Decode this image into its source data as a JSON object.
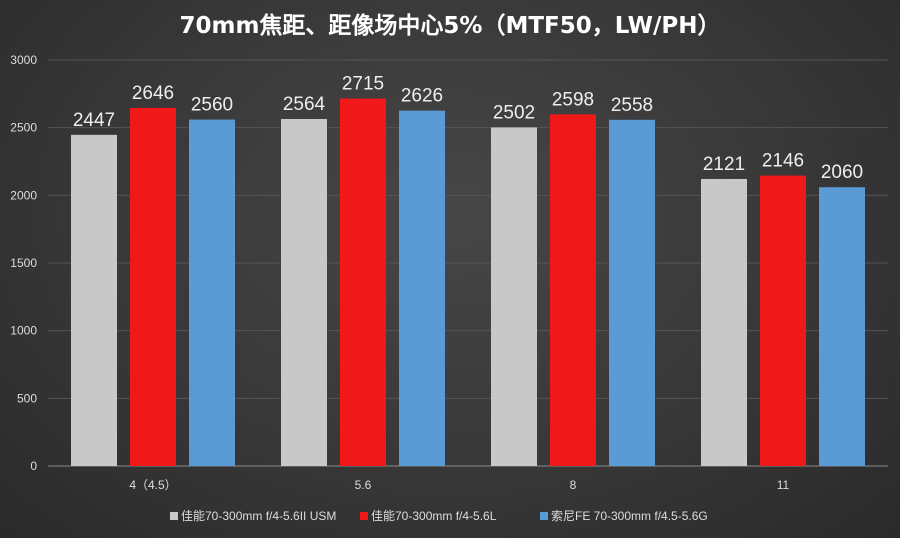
{
  "chart_data": {
    "type": "bar",
    "title": "70mm焦距、距像场中心5%（MTF50，LW/PH）",
    "xlabel": "",
    "ylabel": "",
    "categories": [
      "4（4.5）",
      "5.6",
      "8",
      "11"
    ],
    "series": [
      {
        "name": "佳能70-300mm f/4-5.6II USM",
        "color": "#c8c8c8",
        "values": [
          2447,
          2564,
          2502,
          2121
        ]
      },
      {
        "name": "佳能70-300mm f/4-5.6L",
        "color": "#f01818",
        "values": [
          2646,
          2715,
          2598,
          2146
        ]
      },
      {
        "name": "索尼FE 70-300mm f/4.5-5.6G",
        "color": "#5b9bd5",
        "values": [
          2560,
          2626,
          2558,
          2060
        ]
      }
    ],
    "ylim": [
      0,
      3000
    ],
    "yticks": [
      0,
      500,
      1000,
      1500,
      2000,
      2500,
      3000
    ],
    "grid": true,
    "legend": "bottom"
  }
}
